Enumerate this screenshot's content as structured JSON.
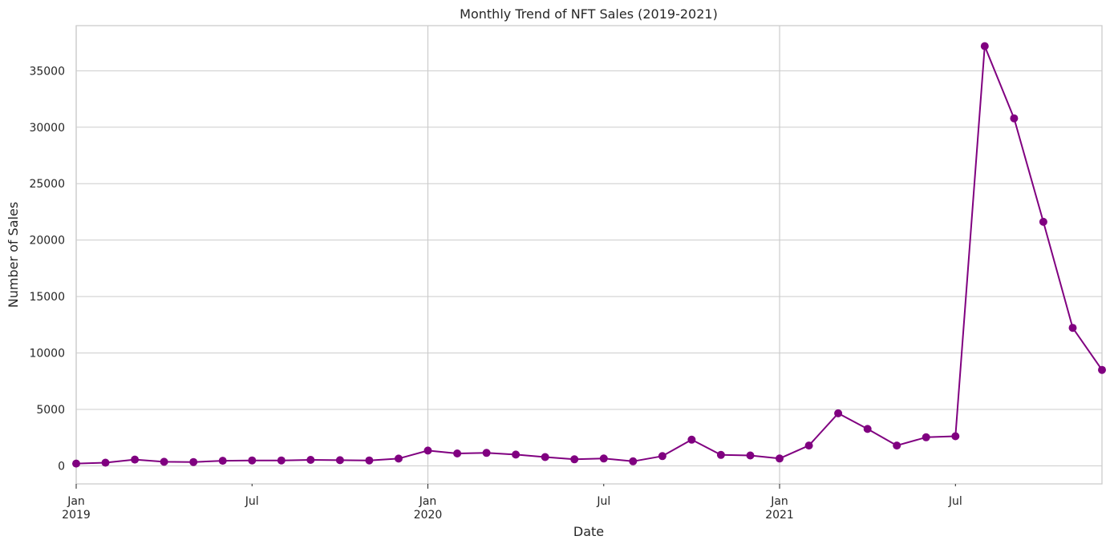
{
  "chart_data": {
    "type": "line",
    "title": "Monthly Trend of NFT Sales (2019-2021)",
    "xlabel": "Date",
    "ylabel": "Number of Sales",
    "x": [
      "2019-01",
      "2019-02",
      "2019-03",
      "2019-04",
      "2019-05",
      "2019-06",
      "2019-07",
      "2019-08",
      "2019-09",
      "2019-10",
      "2019-11",
      "2019-12",
      "2020-01",
      "2020-02",
      "2020-03",
      "2020-04",
      "2020-05",
      "2020-06",
      "2020-07",
      "2020-08",
      "2020-09",
      "2020-10",
      "2020-11",
      "2020-12",
      "2021-01",
      "2021-02",
      "2021-03",
      "2021-04",
      "2021-05",
      "2021-06",
      "2021-07",
      "2021-08",
      "2021-09",
      "2021-10",
      "2021-11",
      "2021-12"
    ],
    "series": [
      {
        "values": [
          200,
          280,
          560,
          360,
          340,
          450,
          480,
          480,
          530,
          500,
          480,
          640,
          1350,
          1100,
          1150,
          1000,
          780,
          580,
          650,
          400,
          860,
          2320,
          970,
          920,
          650,
          1800,
          4650,
          3270,
          1800,
          2530,
          2620,
          37180,
          30790,
          21620,
          12230,
          8500
        ],
        "color": "#800080"
      }
    ],
    "yticks": [
      0,
      5000,
      10000,
      15000,
      20000,
      25000,
      30000,
      35000
    ],
    "ylim": [
      -1600,
      39000
    ],
    "xticks": [
      {
        "date": "2019-01",
        "label": "Jan",
        "year": "2019",
        "major": true
      },
      {
        "date": "2019-07",
        "label": "Jul",
        "year": "",
        "major": false
      },
      {
        "date": "2020-01",
        "label": "Jan",
        "year": "2020",
        "major": true
      },
      {
        "date": "2020-07",
        "label": "Jul",
        "year": "",
        "major": false
      },
      {
        "date": "2021-01",
        "label": "Jan",
        "year": "2021",
        "major": true
      },
      {
        "date": "2021-07",
        "label": "Jul",
        "year": "",
        "major": false
      }
    ],
    "xlim": [
      "2019-01",
      "2021-12"
    ],
    "grid": true,
    "colors": {
      "line": "#800080",
      "grid": "#cccccc",
      "axes": "#cccccc",
      "text": "#262626"
    }
  }
}
